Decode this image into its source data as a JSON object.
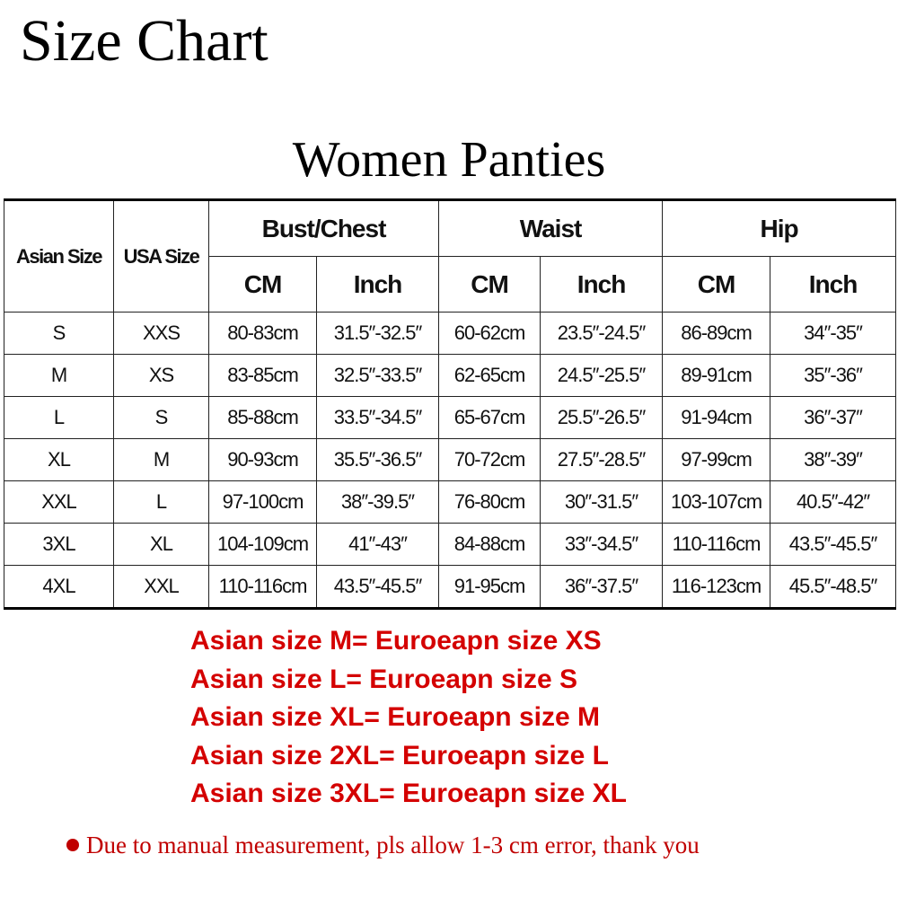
{
  "title": "Size Chart",
  "subtitle": "Women Panties",
  "table": {
    "headers": {
      "asian_size": "Asian Size",
      "usa_size": "USA Size",
      "bust": "Bust/Chest",
      "waist": "Waist",
      "hip": "Hip",
      "cm": "CM",
      "inch": "Inch"
    },
    "rows": [
      [
        "S",
        "XXS",
        "80-83cm",
        "31.5″-32.5″",
        "60-62cm",
        "23.5″-24.5″",
        "86-89cm",
        "34″-35″"
      ],
      [
        "M",
        "XS",
        "83-85cm",
        "32.5″-33.5″",
        "62-65cm",
        "24.5″-25.5″",
        "89-91cm",
        "35″-36″"
      ],
      [
        "L",
        "S",
        "85-88cm",
        "33.5″-34.5″",
        "65-67cm",
        "25.5″-26.5″",
        "91-94cm",
        "36″-37″"
      ],
      [
        "XL",
        "M",
        "90-93cm",
        "35.5″-36.5″",
        "70-72cm",
        "27.5″-28.5″",
        "97-99cm",
        "38″-39″"
      ],
      [
        "XXL",
        "L",
        "97-100cm",
        "38″-39.5″",
        "76-80cm",
        "30″-31.5″",
        "103-107cm",
        "40.5″-42″"
      ],
      [
        "3XL",
        "XL",
        "104-109cm",
        "41″-43″",
        "84-88cm",
        "33″-34.5″",
        "110-116cm",
        "43.5″-45.5″"
      ],
      [
        "4XL",
        "XXL",
        "110-116cm",
        "43.5″-45.5″",
        "91-95cm",
        "36″-37.5″",
        "116-123cm",
        "45.5″-48.5″"
      ]
    ]
  },
  "notes": [
    "Asian size M= Euroeapn size XS",
    "Asian size L= Euroeapn size S",
    "Asian size XL= Euroeapn size M",
    "Asian size 2XL= Euroeapn size L",
    "Asian size 3XL= Euroeapn size XL"
  ],
  "footer": "Due to manual measurement, pls allow 1-3 cm error, thank you",
  "colors": {
    "note_red": "#d40000",
    "footer_red": "#c00000"
  }
}
